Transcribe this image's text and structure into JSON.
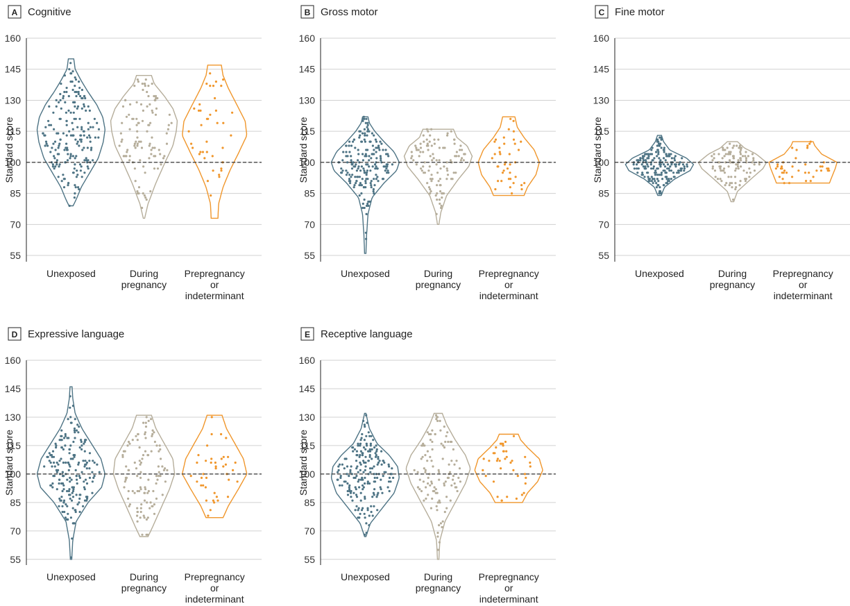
{
  "colors": {
    "unexposed": "#4d7384",
    "during": "#b5ad9a",
    "prepregnancy": "#f0962b"
  },
  "chart_data": [
    {
      "type": "violin",
      "letter": "A",
      "title": "Cognitive",
      "ylabel": "Standard score",
      "ylim": [
        52,
        160
      ],
      "yticks": [
        55,
        70,
        85,
        100,
        115,
        130,
        145,
        160
      ],
      "reference_line": 100,
      "categories": [
        "Unexposed",
        "During pregnancy",
        "Prepregnancy or indeterminant"
      ],
      "category_lines": [
        [
          "Unexposed"
        ],
        [
          "During",
          "pregnancy"
        ],
        [
          "Prepregnancy",
          "or",
          "indeterminant"
        ]
      ],
      "groups": [
        {
          "min": 79,
          "max": 150,
          "median": 116,
          "profile": [
            [
              79,
              0.06
            ],
            [
              82,
              0.15
            ],
            [
              88,
              0.3
            ],
            [
              95,
              0.55
            ],
            [
              102,
              0.8
            ],
            [
              110,
              0.95
            ],
            [
              116,
              1
            ],
            [
              122,
              0.93
            ],
            [
              128,
              0.75
            ],
            [
              134,
              0.5
            ],
            [
              140,
              0.28
            ],
            [
              145,
              0.12
            ],
            [
              150,
              0.08
            ]
          ],
          "points": 200,
          "color_key": "unexposed"
        },
        {
          "min": 73,
          "max": 142,
          "median": 115,
          "profile": [
            [
              73,
              0.02
            ],
            [
              80,
              0.12
            ],
            [
              90,
              0.35
            ],
            [
              100,
              0.62
            ],
            [
              108,
              0.85
            ],
            [
              115,
              0.95
            ],
            [
              120,
              0.98
            ],
            [
              126,
              0.85
            ],
            [
              132,
              0.6
            ],
            [
              138,
              0.3
            ],
            [
              142,
              0.22
            ]
          ],
          "points": 110,
          "color_key": "during"
        },
        {
          "min": 73,
          "max": 147,
          "median": 113,
          "profile": [
            [
              73,
              0.1
            ],
            [
              80,
              0.12
            ],
            [
              88,
              0.25
            ],
            [
              96,
              0.45
            ],
            [
              105,
              0.72
            ],
            [
              113,
              0.95
            ],
            [
              120,
              0.9
            ],
            [
              128,
              0.65
            ],
            [
              136,
              0.4
            ],
            [
              142,
              0.25
            ],
            [
              147,
              0.2
            ]
          ],
          "points": 40,
          "color_key": "prepregnancy"
        }
      ]
    },
    {
      "type": "violin",
      "letter": "B",
      "title": "Gross motor",
      "ylabel": "Standard score",
      "ylim": [
        52,
        160
      ],
      "yticks": [
        55,
        70,
        85,
        100,
        115,
        130,
        145,
        160
      ],
      "reference_line": 100,
      "categories": [
        "Unexposed",
        "During pregnancy",
        "Prepregnancy or indeterminant"
      ],
      "category_lines": [
        [
          "Unexposed"
        ],
        [
          "During",
          "pregnancy"
        ],
        [
          "Prepregnancy",
          "or",
          "indeterminant"
        ]
      ],
      "groups": [
        {
          "min": 56,
          "max": 122,
          "median": 97,
          "profile": [
            [
              56,
              0.02
            ],
            [
              65,
              0.04
            ],
            [
              75,
              0.08
            ],
            [
              83,
              0.2
            ],
            [
              90,
              0.55
            ],
            [
              96,
              0.92
            ],
            [
              100,
              1
            ],
            [
              105,
              0.85
            ],
            [
              110,
              0.55
            ],
            [
              115,
              0.28
            ],
            [
              119,
              0.12
            ],
            [
              122,
              0.08
            ]
          ],
          "points": 200,
          "color_key": "unexposed"
        },
        {
          "min": 70,
          "max": 116,
          "median": 100,
          "profile": [
            [
              70,
              0.02
            ],
            [
              76,
              0.08
            ],
            [
              84,
              0.25
            ],
            [
              92,
              0.6
            ],
            [
              98,
              0.9
            ],
            [
              103,
              1
            ],
            [
              108,
              0.85
            ],
            [
              112,
              0.55
            ],
            [
              116,
              0.45
            ]
          ],
          "points": 110,
          "color_key": "during"
        },
        {
          "min": 84,
          "max": 122,
          "median": 100,
          "profile": [
            [
              84,
              0.45
            ],
            [
              88,
              0.55
            ],
            [
              94,
              0.8
            ],
            [
              100,
              0.9
            ],
            [
              106,
              0.75
            ],
            [
              112,
              0.45
            ],
            [
              117,
              0.25
            ],
            [
              122,
              0.18
            ]
          ],
          "points": 40,
          "color_key": "prepregnancy"
        }
      ]
    },
    {
      "type": "violin",
      "letter": "C",
      "title": "Fine motor",
      "ylabel": "Standard score",
      "ylim": [
        52,
        160
      ],
      "yticks": [
        55,
        70,
        85,
        100,
        115,
        130,
        145,
        160
      ],
      "reference_line": 100,
      "categories": [
        "Unexposed",
        "During pregnancy",
        "Prepregnancy or indeterminant"
      ],
      "category_lines": [
        [
          "Unexposed"
        ],
        [
          "During",
          "pregnancy"
        ],
        [
          "Prepregnancy",
          "or",
          "indeterminant"
        ]
      ],
      "groups": [
        {
          "min": 84,
          "max": 113,
          "median": 98,
          "profile": [
            [
              84,
              0.05
            ],
            [
              88,
              0.15
            ],
            [
              92,
              0.45
            ],
            [
              96,
              0.9
            ],
            [
              99,
              1
            ],
            [
              102,
              0.8
            ],
            [
              106,
              0.3
            ],
            [
              110,
              0.12
            ],
            [
              113,
              0.06
            ]
          ],
          "points": 200,
          "color_key": "unexposed"
        },
        {
          "min": 81,
          "max": 110,
          "median": 99,
          "profile": [
            [
              81,
              0.04
            ],
            [
              86,
              0.15
            ],
            [
              92,
              0.55
            ],
            [
              97,
              0.9
            ],
            [
              100,
              1
            ],
            [
              104,
              0.7
            ],
            [
              107,
              0.35
            ],
            [
              110,
              0.15
            ]
          ],
          "points": 110,
          "color_key": "during"
        },
        {
          "min": 90,
          "max": 110,
          "median": 98,
          "profile": [
            [
              90,
              0.78
            ],
            [
              93,
              0.85
            ],
            [
              97,
              0.95
            ],
            [
              100,
              1
            ],
            [
              104,
              0.55
            ],
            [
              108,
              0.35
            ],
            [
              110,
              0.3
            ]
          ],
          "points": 40,
          "color_key": "prepregnancy"
        }
      ]
    },
    {
      "type": "violin",
      "letter": "D",
      "title": "Expressive language",
      "ylabel": "Standard score",
      "ylim": [
        52,
        160
      ],
      "yticks": [
        55,
        70,
        85,
        100,
        115,
        130,
        145,
        160
      ],
      "reference_line": 100,
      "categories": [
        "Unexposed",
        "During pregnancy",
        "Prepregnancy or indeterminant"
      ],
      "category_lines": [
        [
          "Unexposed"
        ],
        [
          "During",
          "pregnancy"
        ],
        [
          "Prepregnancy",
          "or",
          "indeterminant"
        ]
      ],
      "groups": [
        {
          "min": 55,
          "max": 146,
          "median": 99,
          "profile": [
            [
              55,
              0.02
            ],
            [
              65,
              0.05
            ],
            [
              75,
              0.15
            ],
            [
              85,
              0.5
            ],
            [
              93,
              0.9
            ],
            [
              100,
              1
            ],
            [
              108,
              0.88
            ],
            [
              116,
              0.6
            ],
            [
              124,
              0.32
            ],
            [
              132,
              0.12
            ],
            [
              140,
              0.05
            ],
            [
              146,
              0.03
            ]
          ],
          "points": 200,
          "color_key": "unexposed"
        },
        {
          "min": 67,
          "max": 131,
          "median": 100,
          "profile": [
            [
              67,
              0.12
            ],
            [
              72,
              0.25
            ],
            [
              82,
              0.5
            ],
            [
              92,
              0.75
            ],
            [
              100,
              0.9
            ],
            [
              108,
              0.85
            ],
            [
              116,
              0.6
            ],
            [
              124,
              0.35
            ],
            [
              131,
              0.22
            ]
          ],
          "points": 110,
          "color_key": "during"
        },
        {
          "min": 77,
          "max": 131,
          "median": 103,
          "profile": [
            [
              77,
              0.25
            ],
            [
              83,
              0.4
            ],
            [
              92,
              0.7
            ],
            [
              100,
              0.95
            ],
            [
              108,
              0.85
            ],
            [
              116,
              0.6
            ],
            [
              124,
              0.35
            ],
            [
              131,
              0.22
            ]
          ],
          "points": 40,
          "color_key": "prepregnancy"
        }
      ]
    },
    {
      "type": "violin",
      "letter": "E",
      "title": "Receptive language",
      "ylabel": "Standard score",
      "ylim": [
        52,
        160
      ],
      "yticks": [
        55,
        70,
        85,
        100,
        115,
        130,
        145,
        160
      ],
      "reference_line": 100,
      "categories": [
        "Unexposed",
        "During pregnancy",
        "Prepregnancy or indeterminant"
      ],
      "category_lines": [
        [
          "Unexposed"
        ],
        [
          "During",
          "pregnancy"
        ],
        [
          "Prepregnancy",
          "or",
          "indeterminant"
        ]
      ],
      "groups": [
        {
          "min": 67,
          "max": 132,
          "median": 100,
          "profile": [
            [
              67,
              0.02
            ],
            [
              74,
              0.15
            ],
            [
              82,
              0.5
            ],
            [
              90,
              0.85
            ],
            [
              98,
              1
            ],
            [
              104,
              0.95
            ],
            [
              110,
              0.7
            ],
            [
              116,
              0.35
            ],
            [
              124,
              0.12
            ],
            [
              132,
              0.02
            ]
          ],
          "points": 200,
          "color_key": "unexposed"
        },
        {
          "min": 55,
          "max": 132,
          "median": 100,
          "profile": [
            [
              55,
              0.02
            ],
            [
              65,
              0.05
            ],
            [
              75,
              0.2
            ],
            [
              85,
              0.5
            ],
            [
              95,
              0.8
            ],
            [
              103,
              0.95
            ],
            [
              110,
              0.8
            ],
            [
              118,
              0.5
            ],
            [
              126,
              0.25
            ],
            [
              132,
              0.12
            ]
          ],
          "points": 110,
          "color_key": "during"
        },
        {
          "min": 85,
          "max": 121,
          "median": 102,
          "profile": [
            [
              85,
              0.4
            ],
            [
              90,
              0.55
            ],
            [
              96,
              0.85
            ],
            [
              102,
              1
            ],
            [
              108,
              0.9
            ],
            [
              114,
              0.55
            ],
            [
              118,
              0.35
            ],
            [
              121,
              0.28
            ]
          ],
          "points": 40,
          "color_key": "prepregnancy"
        }
      ]
    }
  ]
}
